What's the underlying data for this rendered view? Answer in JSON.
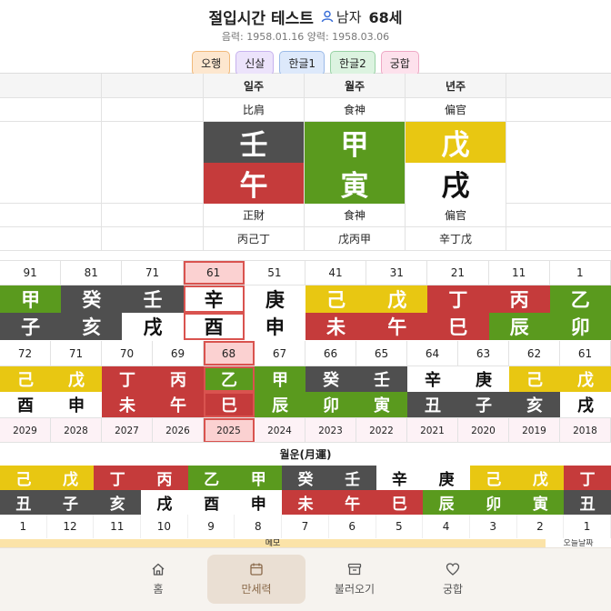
{
  "header": {
    "title": "절입시간 테스트",
    "gender": "남자",
    "age": "68세",
    "dates": "음력: 1958.01.16 양력: 1958.03.06"
  },
  "tabs": [
    {
      "label": "오행",
      "bg": "#fde7cf",
      "border": "#f0b97a"
    },
    {
      "label": "신살",
      "bg": "#ece3fb",
      "border": "#c7b2ee"
    },
    {
      "label": "한글1",
      "bg": "#dde9fb",
      "border": "#9bbbe8"
    },
    {
      "label": "한글2",
      "bg": "#dcf3e0",
      "border": "#98d2a4"
    },
    {
      "label": "궁합",
      "bg": "#fde1ec",
      "border": "#eea8c5"
    }
  ],
  "pillars": {
    "headers": [
      "일주",
      "월주",
      "년주"
    ],
    "top_tengods": [
      "比肩",
      "食神",
      "偏官"
    ],
    "stems": [
      {
        "char": "壬",
        "color": "k"
      },
      {
        "char": "甲",
        "color": "g"
      },
      {
        "char": "戊",
        "color": "y"
      }
    ],
    "branches": [
      {
        "char": "午",
        "color": "r"
      },
      {
        "char": "寅",
        "color": "g"
      },
      {
        "char": "戌",
        "color": "w"
      }
    ],
    "bottom_tengods": [
      "正財",
      "食神",
      "偏官"
    ],
    "hidden_stems": [
      "丙己丁",
      "戊丙甲",
      "辛丁戊"
    ]
  },
  "daeun": {
    "numbers": [
      "91",
      "81",
      "71",
      "61",
      "51",
      "41",
      "31",
      "21",
      "11",
      "1"
    ],
    "selected_index": 3,
    "stems": [
      {
        "char": "甲",
        "color": "g"
      },
      {
        "char": "癸",
        "color": "k"
      },
      {
        "char": "壬",
        "color": "k"
      },
      {
        "char": "辛",
        "color": "w"
      },
      {
        "char": "庚",
        "color": "w"
      },
      {
        "char": "己",
        "color": "y"
      },
      {
        "char": "戊",
        "color": "y"
      },
      {
        "char": "丁",
        "color": "r"
      },
      {
        "char": "丙",
        "color": "r"
      },
      {
        "char": "乙",
        "color": "g"
      }
    ],
    "branches": [
      {
        "char": "子",
        "color": "k"
      },
      {
        "char": "亥",
        "color": "k"
      },
      {
        "char": "戌",
        "color": "w"
      },
      {
        "char": "酉",
        "color": "w"
      },
      {
        "char": "申",
        "color": "w"
      },
      {
        "char": "未",
        "color": "r"
      },
      {
        "char": "午",
        "color": "r"
      },
      {
        "char": "巳",
        "color": "r"
      },
      {
        "char": "辰",
        "color": "g"
      },
      {
        "char": "卯",
        "color": "g"
      }
    ]
  },
  "seun": {
    "ages": [
      "72",
      "71",
      "70",
      "69",
      "68",
      "67",
      "66",
      "65",
      "64",
      "63",
      "62",
      "61"
    ],
    "selected_index": 4,
    "stems": [
      {
        "char": "己",
        "color": "y"
      },
      {
        "char": "戊",
        "color": "y"
      },
      {
        "char": "丁",
        "color": "r"
      },
      {
        "char": "丙",
        "color": "r"
      },
      {
        "char": "乙",
        "color": "g"
      },
      {
        "char": "甲",
        "color": "g"
      },
      {
        "char": "癸",
        "color": "k"
      },
      {
        "char": "壬",
        "color": "k"
      },
      {
        "char": "辛",
        "color": "w"
      },
      {
        "char": "庚",
        "color": "w"
      },
      {
        "char": "己",
        "color": "y"
      },
      {
        "char": "戊",
        "color": "y"
      }
    ],
    "branches": [
      {
        "char": "酉",
        "color": "w"
      },
      {
        "char": "申",
        "color": "w"
      },
      {
        "char": "未",
        "color": "r"
      },
      {
        "char": "午",
        "color": "r"
      },
      {
        "char": "巳",
        "color": "r"
      },
      {
        "char": "辰",
        "color": "g"
      },
      {
        "char": "卯",
        "color": "g"
      },
      {
        "char": "寅",
        "color": "g"
      },
      {
        "char": "丑",
        "color": "k"
      },
      {
        "char": "子",
        "color": "k"
      },
      {
        "char": "亥",
        "color": "k"
      },
      {
        "char": "戌",
        "color": "w"
      }
    ],
    "years": [
      "2029",
      "2028",
      "2027",
      "2026",
      "2025",
      "2024",
      "2023",
      "2022",
      "2021",
      "2020",
      "2019",
      "2018"
    ]
  },
  "woleun": {
    "title": "월운(月運)",
    "stems": [
      {
        "char": "己",
        "color": "y"
      },
      {
        "char": "戊",
        "color": "y"
      },
      {
        "char": "丁",
        "color": "r"
      },
      {
        "char": "丙",
        "color": "r"
      },
      {
        "char": "乙",
        "color": "g"
      },
      {
        "char": "甲",
        "color": "g"
      },
      {
        "char": "癸",
        "color": "k"
      },
      {
        "char": "壬",
        "color": "k"
      },
      {
        "char": "辛",
        "color": "w"
      },
      {
        "char": "庚",
        "color": "w"
      },
      {
        "char": "己",
        "color": "y"
      },
      {
        "char": "戊",
        "color": "y"
      },
      {
        "char": "丁",
        "color": "r"
      }
    ],
    "branches": [
      {
        "char": "丑",
        "color": "k"
      },
      {
        "char": "子",
        "color": "k"
      },
      {
        "char": "亥",
        "color": "k"
      },
      {
        "char": "戌",
        "color": "w"
      },
      {
        "char": "酉",
        "color": "w"
      },
      {
        "char": "申",
        "color": "w"
      },
      {
        "char": "未",
        "color": "r"
      },
      {
        "char": "午",
        "color": "r"
      },
      {
        "char": "巳",
        "color": "r"
      },
      {
        "char": "辰",
        "color": "g"
      },
      {
        "char": "卯",
        "color": "g"
      },
      {
        "char": "寅",
        "color": "g"
      },
      {
        "char": "丑",
        "color": "k"
      }
    ],
    "months": [
      "1",
      "12",
      "11",
      "10",
      "9",
      "8",
      "7",
      "6",
      "5",
      "4",
      "3",
      "2",
      "1"
    ]
  },
  "strip": {
    "left": "메모",
    "right": "오늘날짜"
  },
  "nav": [
    {
      "label": "홈",
      "icon": "home-icon"
    },
    {
      "label": "만세력",
      "icon": "calendar-icon",
      "active": true
    },
    {
      "label": "불러오기",
      "icon": "archive-icon"
    },
    {
      "label": "궁합",
      "icon": "heart-icon"
    }
  ]
}
